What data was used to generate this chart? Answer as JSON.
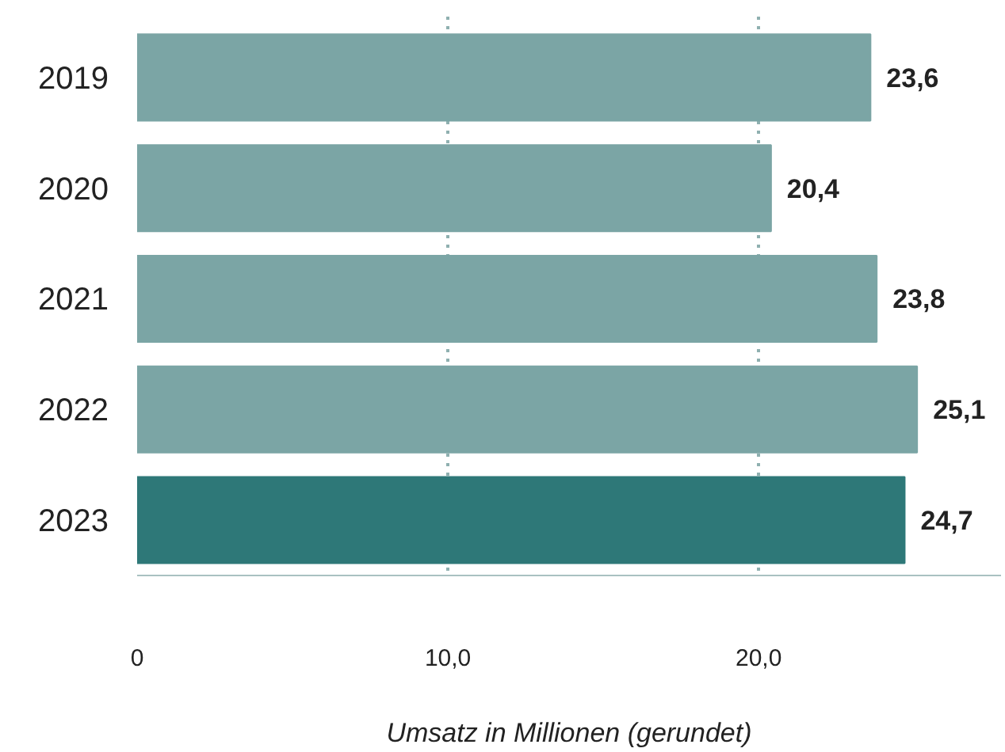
{
  "chart_data": {
    "type": "bar",
    "orientation": "horizontal",
    "xlabel": "Umsatz in Millionen (gerundet)",
    "categories": [
      "2019",
      "2020",
      "2021",
      "2022",
      "2023"
    ],
    "values": [
      23.6,
      20.4,
      23.8,
      25.1,
      24.7
    ],
    "colors": [
      "#7ba5a5",
      "#7ba5a5",
      "#7ba5a5",
      "#7ba5a5",
      "#2e7878"
    ],
    "value_labels": [
      "23,6",
      "20,4",
      "23,8",
      "25,1",
      "24,7"
    ],
    "xticks": [
      {
        "value": 0,
        "label": "0"
      },
      {
        "value": 10,
        "label": "10,0"
      },
      {
        "value": 20,
        "label": "20,0"
      }
    ],
    "xlim": [
      0,
      27.8
    ],
    "grid": "x"
  }
}
